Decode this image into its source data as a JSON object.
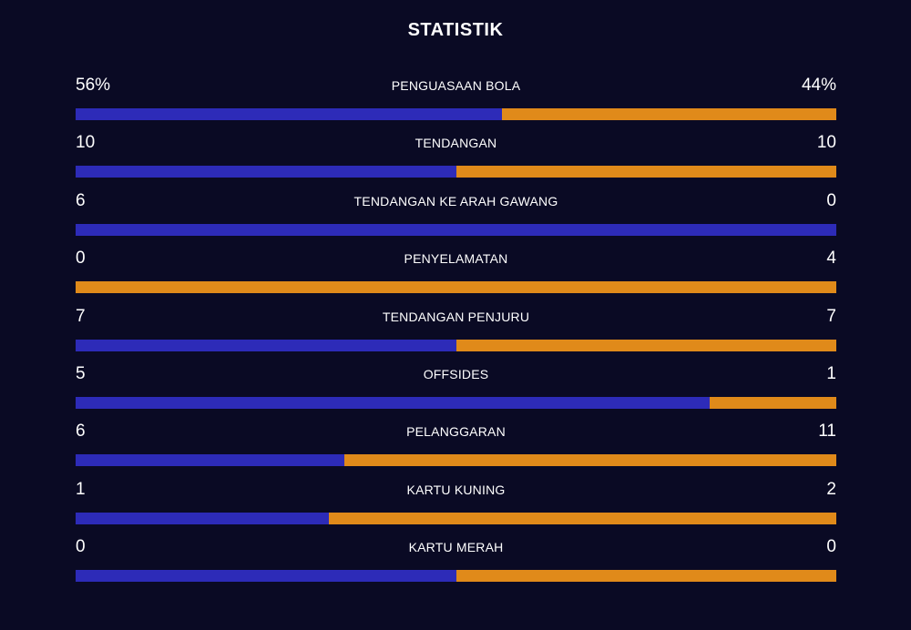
{
  "title": "STATISTIK",
  "colors": {
    "background": "#0a0a24",
    "home": "#2d2bb8",
    "away": "#e08a1a",
    "text": "#ffffff"
  },
  "stats": [
    {
      "label": "PENGUASAAN BOLA",
      "home": "56%",
      "away": "44%",
      "home_share": 0.56
    },
    {
      "label": "TENDANGAN",
      "home": "10",
      "away": "10",
      "home_share": 0.5
    },
    {
      "label": "TENDANGAN KE ARAH GAWANG",
      "home": "6",
      "away": "0",
      "home_share": 1.0
    },
    {
      "label": "PENYELAMATAN",
      "home": "0",
      "away": "4",
      "home_share": 0.0
    },
    {
      "label": "TENDANGAN PENJURU",
      "home": "7",
      "away": "7",
      "home_share": 0.5
    },
    {
      "label": "OFFSIDES",
      "home": "5",
      "away": "1",
      "home_share": 0.8333
    },
    {
      "label": "PELANGGARAN",
      "home": "6",
      "away": "11",
      "home_share": 0.3529
    },
    {
      "label": "KARTU KUNING",
      "home": "1",
      "away": "2",
      "home_share": 0.3333
    },
    {
      "label": "KARTU MERAH",
      "home": "0",
      "away": "0",
      "home_share": 0.5
    }
  ]
}
